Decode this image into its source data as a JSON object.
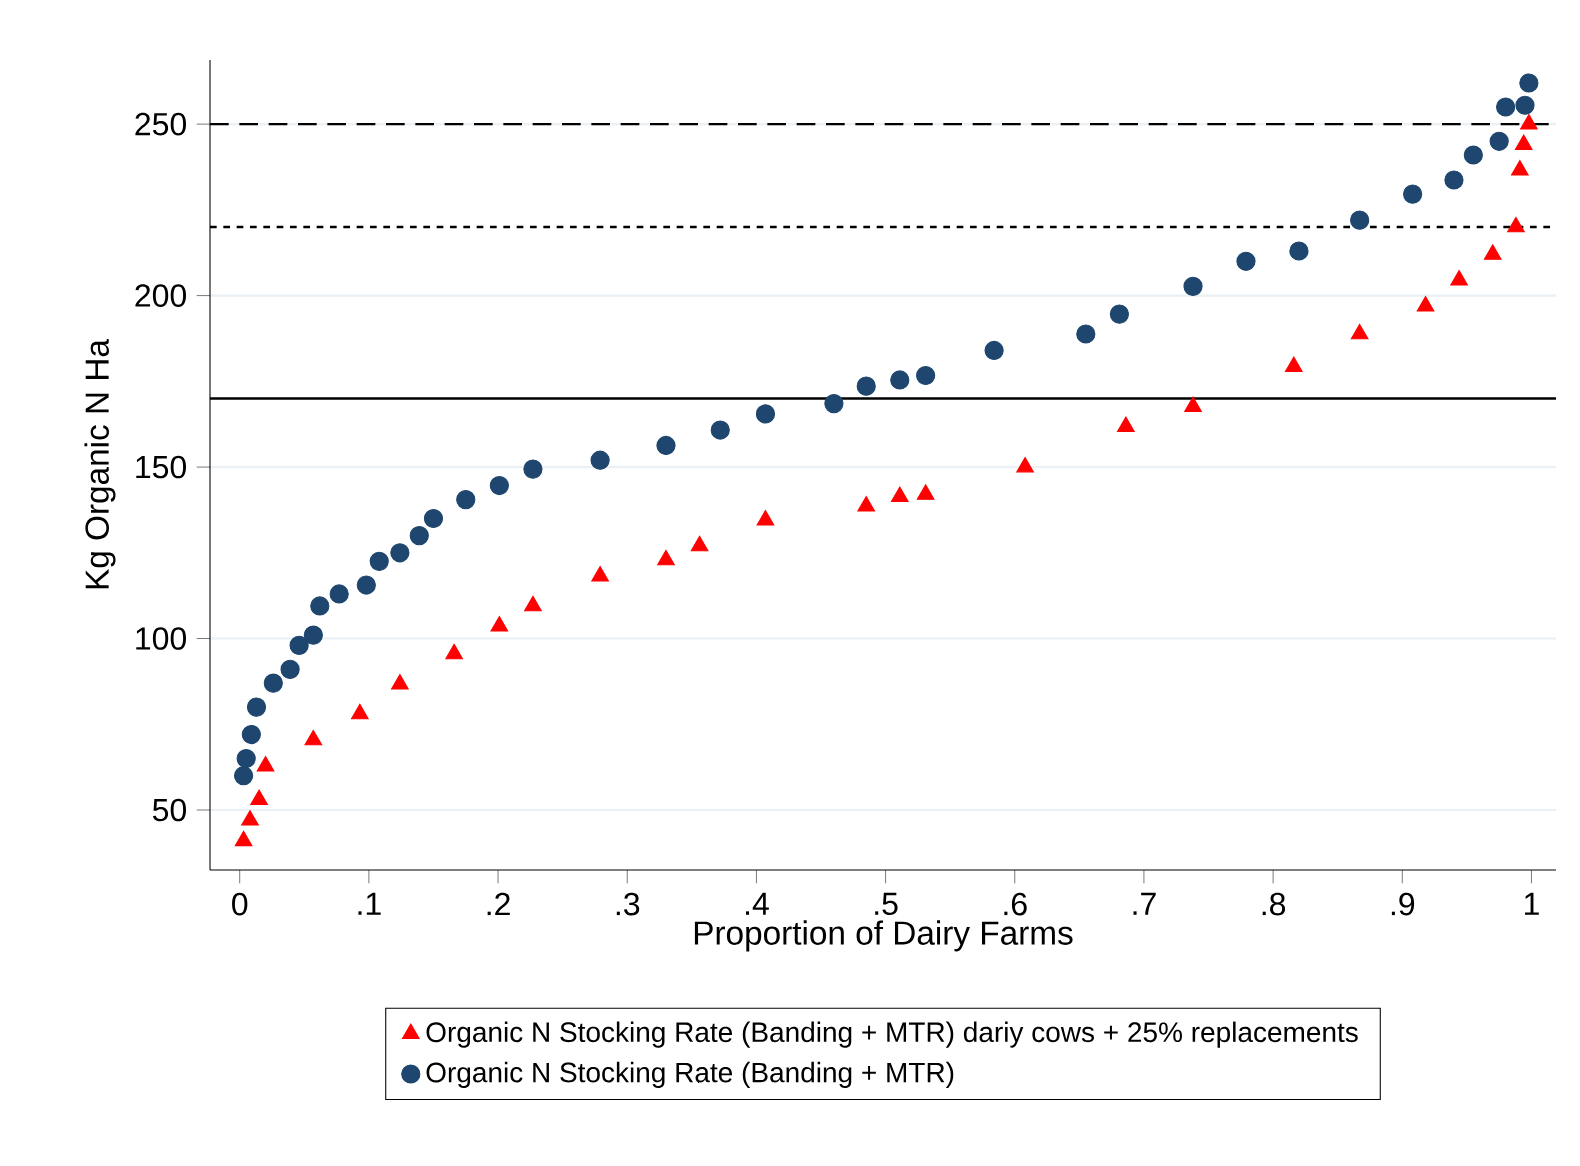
{
  "chart_data": {
    "type": "scatter",
    "xlabel": "Proportion of Dairy Farms",
    "ylabel": "Kg Organic N Ha",
    "xlim": [
      -0.023,
      1.019
    ],
    "ylim": [
      32.5,
      268.7
    ],
    "xticks": [
      0,
      {
        "value": 0.1,
        "label": ".1"
      },
      {
        "value": 0.2,
        "label": ".2"
      },
      {
        "value": 0.3,
        "label": ".3"
      },
      {
        "value": 0.4,
        "label": ".4"
      },
      {
        "value": 0.5,
        "label": ".5"
      },
      {
        "value": 0.6,
        "label": ".6"
      },
      {
        "value": 0.7,
        "label": ".7"
      },
      {
        "value": 0.8,
        "label": ".8"
      },
      {
        "value": 0.9,
        "label": ".9"
      },
      1
    ],
    "yticks": [
      50,
      100,
      150,
      200,
      250
    ],
    "grid": "y",
    "legend": "bottom",
    "ref_lines": [
      {
        "axis": "y",
        "value": 250,
        "color": "#000000",
        "line_style": "dashed"
      },
      {
        "axis": "y",
        "value": 220,
        "color": "#000000",
        "line_style": "dotted"
      },
      {
        "axis": "y",
        "value": 170,
        "color": "#000000",
        "line_style": "solid"
      }
    ],
    "series": [
      {
        "name": "Organic N Stocking Rate (Banding + MTR) dariy cows + 25% replacements",
        "color": "#ff0000",
        "marker": "triangle",
        "x": [
          0.003,
          0.008,
          0.015,
          0.02,
          0.057,
          0.093,
          0.124,
          0.166,
          0.201,
          0.227,
          0.279,
          0.33,
          0.356,
          0.407,
          0.485,
          0.511,
          0.531,
          0.608,
          0.686,
          0.738,
          0.816,
          0.867,
          0.918,
          0.944,
          0.97,
          0.988,
          0.991,
          0.994,
          0.998
        ],
        "values": [
          41,
          47,
          53,
          62.8,
          70.4,
          78,
          86.7,
          95.5,
          103.6,
          109.5,
          118.2,
          122.9,
          127,
          134.5,
          138.6,
          141.4,
          142,
          150,
          161.8,
          167.6,
          179.3,
          188.8,
          196.9,
          204.5,
          212,
          220,
          236.6,
          244,
          250
        ]
      },
      {
        "name": "Organic N Stocking Rate (Banding + MTR)",
        "color": "#1e466e",
        "marker": "circle",
        "x": [
          0.003,
          0.005,
          0.009,
          0.013,
          0.026,
          0.039,
          0.046,
          0.057,
          0.062,
          0.077,
          0.098,
          0.108,
          0.124,
          0.139,
          0.15,
          0.175,
          0.201,
          0.227,
          0.279,
          0.33,
          0.372,
          0.407,
          0.46,
          0.485,
          0.511,
          0.531,
          0.584,
          0.655,
          0.681,
          0.738,
          0.779,
          0.82,
          0.867,
          0.908,
          0.94,
          0.955,
          0.975,
          0.98,
          0.995,
          0.998
        ],
        "values": [
          60,
          65,
          72,
          80,
          87,
          91,
          98,
          101,
          109.5,
          113,
          115.6,
          122.5,
          125,
          130,
          135,
          140.5,
          144.6,
          149.4,
          152,
          156.3,
          160.8,
          165.5,
          168.5,
          173.6,
          175.4,
          176.7,
          184,
          188.8,
          194.6,
          202.7,
          210,
          213,
          222,
          229.6,
          233.7,
          241,
          245,
          255,
          255.5,
          262
        ]
      }
    ]
  }
}
